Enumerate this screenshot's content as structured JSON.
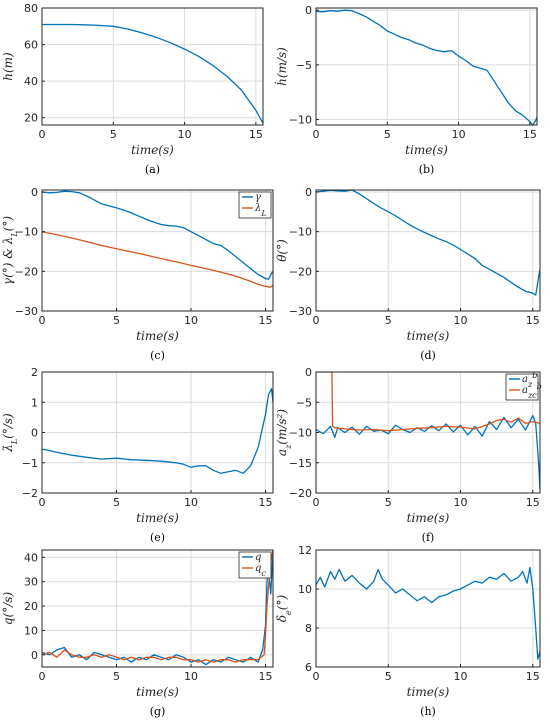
{
  "colors": {
    "blue": "#0072bd",
    "orange": "#d95319"
  },
  "chart_data": [
    {
      "id": "a",
      "caption": "(a)",
      "type": "line",
      "xlabel": "time(s)",
      "ylabel": "h(m)",
      "xlim": [
        0,
        15.5
      ],
      "ylim": [
        16,
        80
      ],
      "xticks": [
        0,
        5,
        10,
        15
      ],
      "yticks": [
        20,
        40,
        60,
        80
      ],
      "grid": true,
      "legend": [],
      "series": [
        {
          "color": "blue",
          "x": [
            0,
            1,
            2,
            3,
            4,
            5,
            6,
            7,
            8,
            9,
            10,
            11,
            12,
            13,
            14,
            15,
            15.5
          ],
          "y": [
            71,
            71,
            71,
            70.8,
            70.5,
            70,
            68.5,
            66.5,
            64,
            61,
            57.5,
            53.5,
            48.5,
            42.5,
            35,
            24,
            17
          ]
        }
      ]
    },
    {
      "id": "b",
      "caption": "(b)",
      "type": "line",
      "xlabel": "time(s)",
      "ylabel": "ḣ(m/s)",
      "xlim": [
        0,
        15.5
      ],
      "ylim": [
        -10.5,
        0.2
      ],
      "xticks": [
        0,
        5,
        10,
        15
      ],
      "yticks": [
        0,
        -5,
        -10
      ],
      "grid": true,
      "legend": [],
      "series": [
        {
          "color": "blue",
          "x": [
            0,
            0.5,
            1,
            1.5,
            2,
            2.5,
            3,
            3.5,
            4,
            4.5,
            5,
            5.5,
            6,
            6.5,
            7,
            7.5,
            8,
            8.5,
            9,
            9.5,
            10,
            10.5,
            11,
            11.5,
            12,
            12.5,
            13,
            13.5,
            14,
            14.5,
            15,
            15.2,
            15.4,
            15.5
          ],
          "y": [
            -0.1,
            -0.15,
            -0.05,
            -0.1,
            0,
            -0.05,
            -0.3,
            -0.6,
            -1.0,
            -1.4,
            -1.9,
            -2.2,
            -2.5,
            -2.7,
            -3.0,
            -3.2,
            -3.5,
            -3.7,
            -3.8,
            -3.7,
            -4.2,
            -4.6,
            -5.1,
            -5.3,
            -5.5,
            -6.5,
            -7.5,
            -8.5,
            -9.2,
            -9.6,
            -10.2,
            -10.5,
            -10.1,
            -9.8
          ]
        }
      ]
    },
    {
      "id": "c",
      "caption": "(c)",
      "type": "line",
      "xlabel": "time(s)",
      "ylabel": "γ(°) & λ_L(°)",
      "xlim": [
        0,
        15.5
      ],
      "ylim": [
        -30,
        0.5
      ],
      "xticks": [
        0,
        5,
        10,
        15
      ],
      "yticks": [
        0,
        -10,
        -20,
        -30
      ],
      "grid": true,
      "legend": [
        "γ",
        "λ_L"
      ],
      "series": [
        {
          "name": "γ",
          "color": "blue",
          "x": [
            0,
            0.5,
            1,
            1.5,
            2,
            2.5,
            3,
            3.5,
            4,
            4.5,
            5,
            5.5,
            6,
            6.5,
            7,
            7.5,
            8,
            8.5,
            9,
            9.5,
            10,
            10.5,
            11,
            11.5,
            12,
            12.5,
            13,
            13.5,
            14,
            14.5,
            15,
            15.2,
            15.4,
            15.5
          ],
          "y": [
            0,
            -0.2,
            -0.1,
            0.2,
            0.1,
            -0.2,
            -1.0,
            -2.0,
            -3.0,
            -3.5,
            -4.0,
            -4.6,
            -5.3,
            -6.1,
            -6.9,
            -7.6,
            -8.2,
            -8.5,
            -8.6,
            -9.0,
            -10.0,
            -11.0,
            -12.0,
            -13.0,
            -13.5,
            -14.8,
            -16.3,
            -17.8,
            -19.3,
            -20.8,
            -21.8,
            -22.0,
            -20.5,
            -20.0
          ]
        },
        {
          "name": "λ_L",
          "color": "orange",
          "x": [
            0,
            1,
            2,
            3,
            4,
            5,
            6,
            7,
            8,
            9,
            10,
            11,
            12,
            13,
            14,
            14.5,
            15,
            15.3,
            15.5
          ],
          "y": [
            -10,
            -10.8,
            -11.6,
            -12.5,
            -13.5,
            -14.3,
            -15.1,
            -15.9,
            -16.8,
            -17.6,
            -18.5,
            -19.3,
            -20.2,
            -21.2,
            -22.5,
            -23.3,
            -23.8,
            -24,
            -23.6
          ]
        }
      ]
    },
    {
      "id": "d",
      "caption": "(d)",
      "type": "line",
      "xlabel": "time(s)",
      "ylabel": "θ(°)",
      "xlim": [
        0,
        15.5
      ],
      "ylim": [
        -30,
        0.5
      ],
      "xticks": [
        0,
        5,
        10,
        15
      ],
      "yticks": [
        0,
        -10,
        -20,
        -30
      ],
      "grid": true,
      "legend": [],
      "series": [
        {
          "color": "blue",
          "x": [
            0,
            0.5,
            1,
            1.5,
            2,
            2.5,
            3,
            3.5,
            4,
            4.5,
            5,
            5.5,
            6,
            6.5,
            7,
            7.5,
            8,
            8.5,
            9,
            9.5,
            10,
            10.5,
            11,
            11.5,
            12,
            12.5,
            13,
            13.5,
            14,
            14.5,
            15,
            15.2,
            15.4,
            15.5
          ],
          "y": [
            0,
            0.2,
            0.4,
            0.3,
            0.2,
            0.5,
            -0.5,
            -1.7,
            -2.9,
            -4.0,
            -5.0,
            -6.0,
            -7.2,
            -8.3,
            -9.3,
            -10.2,
            -11.0,
            -11.8,
            -12.5,
            -13.4,
            -14.5,
            -15.6,
            -16.8,
            -18.5,
            -19.5,
            -20.5,
            -21.5,
            -22.8,
            -24.0,
            -25.0,
            -25.5,
            -26.0,
            -21.5,
            -19.5
          ]
        }
      ]
    },
    {
      "id": "e",
      "caption": "(e)",
      "type": "line",
      "xlabel": "time(s)",
      "ylabel": "λ̇_L(°/s)",
      "xlim": [
        0,
        15.5
      ],
      "ylim": [
        -2,
        2
      ],
      "xticks": [
        0,
        5,
        10,
        15
      ],
      "yticks": [
        2,
        1,
        0,
        -1,
        -2
      ],
      "grid": true,
      "legend": [],
      "series": [
        {
          "color": "blue",
          "x": [
            0,
            0.5,
            1,
            2,
            3,
            4,
            5,
            6,
            7,
            8,
            9,
            9.5,
            10,
            10.5,
            11,
            11.5,
            12,
            12.5,
            13,
            13.5,
            14,
            14.5,
            15,
            15.2,
            15.4,
            15.5
          ],
          "y": [
            -0.55,
            -0.6,
            -0.65,
            -0.75,
            -0.82,
            -0.88,
            -0.85,
            -0.9,
            -0.92,
            -0.95,
            -1.0,
            -1.05,
            -1.15,
            -1.1,
            -1.1,
            -1.25,
            -1.35,
            -1.3,
            -1.25,
            -1.35,
            -1.1,
            -0.5,
            0.6,
            1.25,
            1.45,
            1.0
          ]
        }
      ]
    },
    {
      "id": "f",
      "caption": "(f)",
      "type": "line",
      "xlabel": "time(s)",
      "ylabel": "a_z(m/s²)",
      "xlim": [
        0,
        15.5
      ],
      "ylim": [
        -20,
        0
      ],
      "xticks": [
        0,
        5,
        10,
        15
      ],
      "yticks": [
        0,
        -5,
        -10,
        -15,
        -20
      ],
      "grid": true,
      "legend": [
        "a_z^b",
        "a_zc^b"
      ],
      "series": [
        {
          "name": "a_z^b",
          "color": "blue",
          "x": [
            0,
            0.5,
            1,
            1.3,
            1.5,
            2,
            2.5,
            3,
            3.5,
            4,
            4.5,
            5,
            5.5,
            6,
            6.5,
            7,
            7.5,
            8,
            8.5,
            9,
            9.5,
            10,
            10.5,
            11,
            11.5,
            12,
            12.5,
            13,
            13.5,
            14,
            14.5,
            15,
            15.2,
            15.4,
            15.5
          ],
          "y": [
            -9.5,
            -10.2,
            -9.0,
            -10.8,
            -9.2,
            -10.0,
            -9.1,
            -10.3,
            -9.0,
            -9.8,
            -9.6,
            -10.2,
            -8.8,
            -9.5,
            -10.0,
            -9.2,
            -9.8,
            -8.9,
            -9.7,
            -8.6,
            -9.9,
            -8.8,
            -10.4,
            -9.0,
            -10.6,
            -8.2,
            -9.5,
            -7.5,
            -9.2,
            -7.8,
            -9.6,
            -7.2,
            -8.5,
            -15.0,
            -19.5
          ]
        },
        {
          "name": "a_zc^b",
          "color": "orange",
          "x": [
            0,
            1.1,
            1.15,
            1.3,
            2,
            3,
            4,
            5,
            6,
            7,
            8,
            9,
            10,
            11,
            12,
            12.5,
            13,
            13.5,
            14,
            14.5,
            15,
            15.5
          ],
          "y": [
            0,
            0,
            -9.0,
            -9.2,
            -9.4,
            -9.6,
            -9.5,
            -9.7,
            -9.5,
            -9.3,
            -9.2,
            -9.0,
            -9.1,
            -9.4,
            -8.6,
            -8.0,
            -7.8,
            -8.3,
            -7.6,
            -8.5,
            -8.2,
            -8.5
          ]
        }
      ]
    },
    {
      "id": "g",
      "caption": "(g)",
      "type": "line",
      "xlabel": "time(s)",
      "ylabel": "q(°/s)",
      "xlim": [
        0,
        15.5
      ],
      "ylim": [
        -5,
        43
      ],
      "xticks": [
        0,
        5,
        10,
        15
      ],
      "yticks": [
        0,
        10,
        20,
        30,
        40
      ],
      "grid": true,
      "legend": [
        "q",
        "q_c"
      ],
      "series": [
        {
          "name": "q",
          "color": "blue",
          "x": [
            0,
            0.5,
            1,
            1.5,
            2,
            2.5,
            3,
            3.5,
            4,
            4.5,
            5,
            5.5,
            6,
            6.5,
            7,
            7.5,
            8,
            8.5,
            9,
            9.5,
            10,
            10.5,
            11,
            11.5,
            12,
            12.5,
            13,
            13.5,
            14,
            14.5,
            14.8,
            15,
            15.1,
            15.2,
            15.35,
            15.5
          ],
          "y": [
            1,
            0,
            2,
            3,
            -1,
            0,
            -2,
            1,
            0,
            -1,
            -2,
            -1,
            -3,
            -1,
            -2,
            0,
            -1,
            -2,
            0,
            -1,
            -3,
            -2,
            -4,
            -2,
            -3,
            -1,
            -2,
            -3,
            -1,
            -3,
            2,
            12,
            30,
            35,
            25,
            43
          ]
        },
        {
          "name": "q_c",
          "color": "orange",
          "x": [
            0,
            0.5,
            1,
            1.5,
            2,
            2.5,
            3,
            3.5,
            4,
            4.5,
            5,
            5.5,
            6,
            6.5,
            7,
            7.5,
            8,
            8.5,
            9,
            9.5,
            10,
            10.5,
            11,
            11.5,
            12,
            12.5,
            13,
            13.5,
            14,
            14.5,
            14.9,
            15,
            15.1,
            15.2,
            15.35,
            15.5
          ],
          "y": [
            0,
            1,
            -1,
            2,
            0,
            -1,
            -1,
            0,
            -1,
            0,
            -1,
            -2,
            -1,
            -2,
            -1,
            -1,
            -2,
            -1,
            -1,
            -2,
            -2,
            -3,
            -2,
            -3,
            -2,
            -2,
            -3,
            -2,
            -2,
            -2,
            0,
            8,
            20,
            28,
            38,
            43
          ]
        }
      ]
    },
    {
      "id": "h",
      "caption": "(h)",
      "type": "line",
      "xlabel": "time(s)",
      "ylabel": "δ_e(°)",
      "xlim": [
        0,
        15.5
      ],
      "ylim": [
        6,
        12
      ],
      "xticks": [
        0,
        5,
        10,
        15
      ],
      "yticks": [
        6,
        8,
        10,
        12
      ],
      "grid": true,
      "legend": [],
      "series": [
        {
          "color": "blue",
          "x": [
            0,
            0.3,
            0.6,
            1,
            1.3,
            1.6,
            2,
            2.5,
            3,
            3.5,
            4,
            4.3,
            4.6,
            5,
            5.5,
            6,
            6.5,
            7,
            7.5,
            8,
            8.5,
            9,
            9.5,
            10,
            10.5,
            11,
            11.5,
            12,
            12.5,
            13,
            13.5,
            14,
            14.3,
            14.6,
            14.8,
            15,
            15.2,
            15.35,
            15.5
          ],
          "y": [
            10.2,
            10.6,
            10.1,
            10.9,
            10.5,
            11.0,
            10.4,
            10.7,
            10.3,
            10.0,
            10.4,
            11.0,
            10.5,
            10.2,
            9.8,
            10.0,
            9.7,
            9.4,
            9.6,
            9.3,
            9.6,
            9.7,
            9.9,
            10.0,
            10.2,
            10.4,
            10.3,
            10.6,
            10.5,
            10.8,
            10.4,
            10.6,
            10.9,
            10.3,
            11.1,
            10.0,
            8.0,
            6.4,
            6.8
          ]
        }
      ]
    }
  ]
}
